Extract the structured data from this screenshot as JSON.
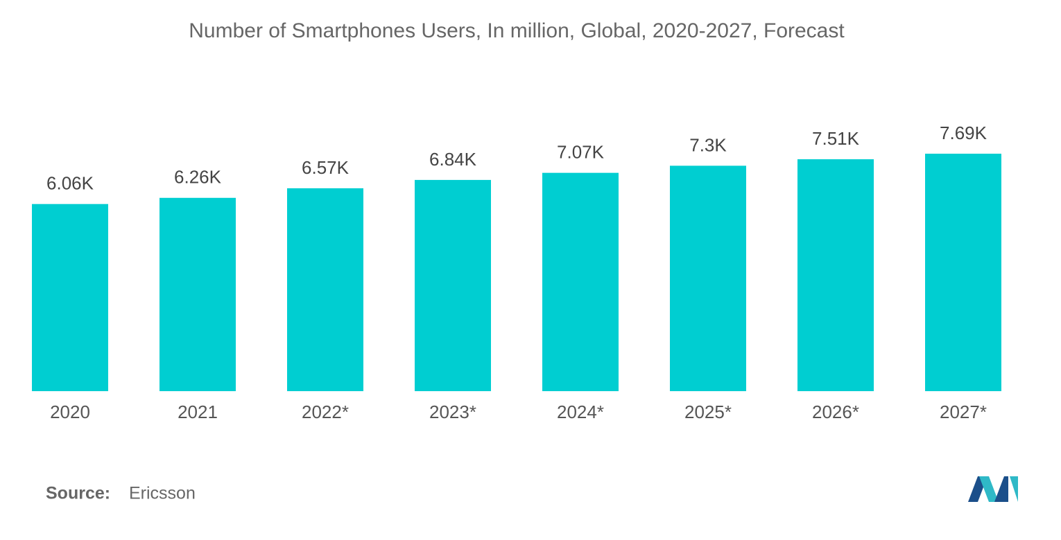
{
  "chart_data": {
    "type": "bar",
    "title": "Number of Smartphones Users, In million, Global, 2020-2027, Forecast",
    "categories": [
      "2020",
      "2021",
      "2022*",
      "2023*",
      "2024*",
      "2025*",
      "2026*",
      "2027*"
    ],
    "values": [
      6060,
      6260,
      6570,
      6840,
      7070,
      7300,
      7510,
      7690
    ],
    "value_labels": [
      "6.06K",
      "6.26K",
      "6.57K",
      "6.84K",
      "7.07K",
      "7.3K",
      "7.51K",
      "7.69K"
    ],
    "color": "#00ced1"
  },
  "source_label": "Source:",
  "source": "Ericsson"
}
